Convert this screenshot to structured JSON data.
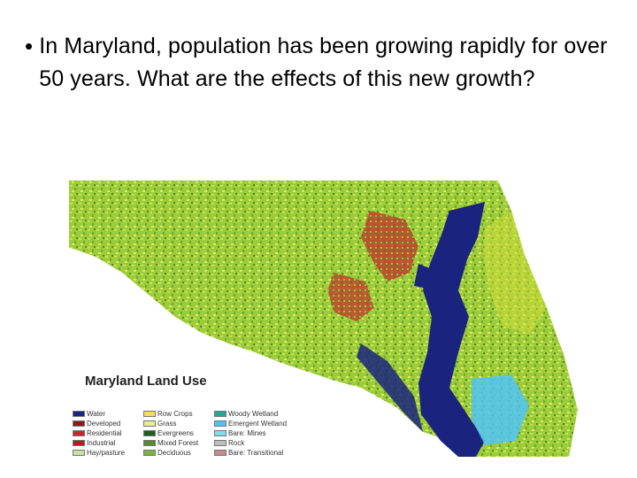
{
  "slide": {
    "bullet": "•",
    "text": "In Maryland, population has been growing rapidly for over 50 years. What are the effects of this new growth?"
  },
  "map": {
    "title": "Maryland Land Use",
    "legend": [
      [
        {
          "label": "Water",
          "color": "#1a237e"
        },
        {
          "label": "Developed",
          "color": "#8b1a1a"
        },
        {
          "label": "Residential",
          "color": "#c62828"
        },
        {
          "label": "Industrial",
          "color": "#b71c1c"
        },
        {
          "label": "Hay/pasture",
          "color": "#c5e1a5"
        }
      ],
      [
        {
          "label": "Row Crops",
          "color": "#f4e04d"
        },
        {
          "label": "Grass",
          "color": "#e6ee9c"
        },
        {
          "label": "Evergreens",
          "color": "#1b5e20"
        },
        {
          "label": "Mixed Forest",
          "color": "#558b2f"
        },
        {
          "label": "Deciduous",
          "color": "#7cb342"
        }
      ],
      [
        {
          "label": "Woody Wetland",
          "color": "#26a69a"
        },
        {
          "label": "Emergent Wetland",
          "color": "#4fc3f7"
        },
        {
          "label": "Bare: Mines",
          "color": "#80deea"
        },
        {
          "label": "Rock",
          "color": "#bdbdbd"
        },
        {
          "label": "Bare: Transitional",
          "color": "#c48b8b"
        }
      ]
    ]
  }
}
